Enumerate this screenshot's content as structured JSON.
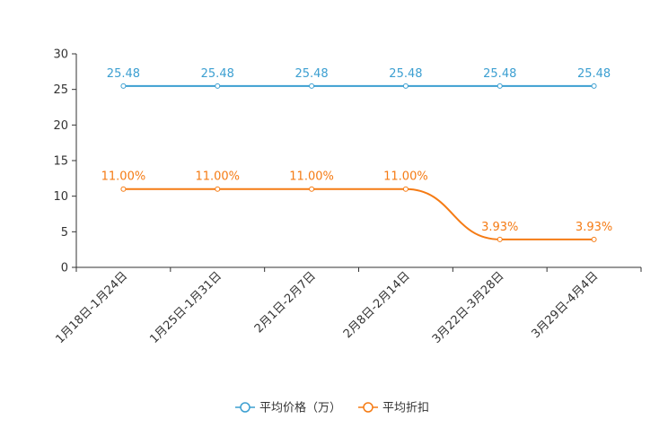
{
  "chart_data": {
    "type": "line",
    "categories": [
      "1月18日-1月24日",
      "1月25日-1月31日",
      "2月1日-2月7日",
      "2月8日-2月14日",
      "3月22日-3月28日",
      "3月29日-4月4日"
    ],
    "ylim": [
      0,
      30
    ],
    "yticks": [
      0,
      5,
      10,
      15,
      20,
      25,
      30
    ],
    "series": [
      {
        "name": "平均价格（万）",
        "color": "#3c9fd1",
        "values": [
          25.48,
          25.48,
          25.48,
          25.48,
          25.48,
          25.48
        ],
        "labels": [
          "25.48",
          "25.48",
          "25.48",
          "25.48",
          "25.48",
          "25.48"
        ]
      },
      {
        "name": "平均折扣",
        "color": "#f57b14",
        "values": [
          11.0,
          11.0,
          11.0,
          11.0,
          3.93,
          3.93
        ],
        "labels": [
          "11.00%",
          "11.00%",
          "11.00%",
          "11.00%",
          "3.93%",
          "3.93%"
        ]
      }
    ],
    "legend_position": "bottom-center"
  }
}
